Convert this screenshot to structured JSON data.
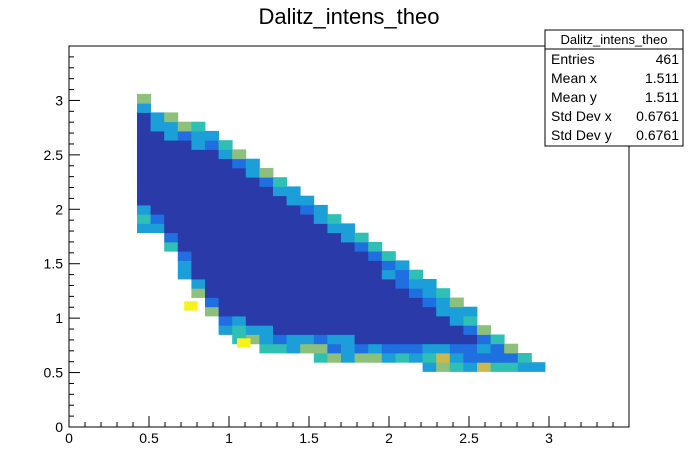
{
  "chart_data": {
    "type": "heatmap",
    "title": "Dalitz_intens_theo",
    "xlabel": "",
    "ylabel": "",
    "xlim": [
      0,
      3.5
    ],
    "ylim": [
      0,
      3.5
    ],
    "bin_width": 0.085,
    "x_ticks": [
      "0",
      "0.5",
      "1",
      "1.5",
      "2",
      "2.5",
      "3"
    ],
    "y_ticks": [
      "0",
      "0.5",
      "1",
      "1.5",
      "2",
      "2.5",
      "3"
    ],
    "grid": false,
    "colormap": [
      "#2a3aa8",
      "#1f6fe0",
      "#1c9fd8",
      "#2fbfb4",
      "#8cc07c",
      "#c9b94e",
      "#f5f31a"
    ],
    "stats": {
      "title": "Dalitz_intens_theo",
      "position": "top-right",
      "rows": [
        {
          "label": "Entries",
          "value": "461"
        },
        {
          "label": "Mean x",
          "value": "1.511"
        },
        {
          "label": "Mean y",
          "value": "1.511"
        },
        {
          "label": "Std Dev x",
          "value": "0.6761"
        },
        {
          "label": "Std Dev y",
          "value": "0.6761"
        }
      ]
    }
  }
}
